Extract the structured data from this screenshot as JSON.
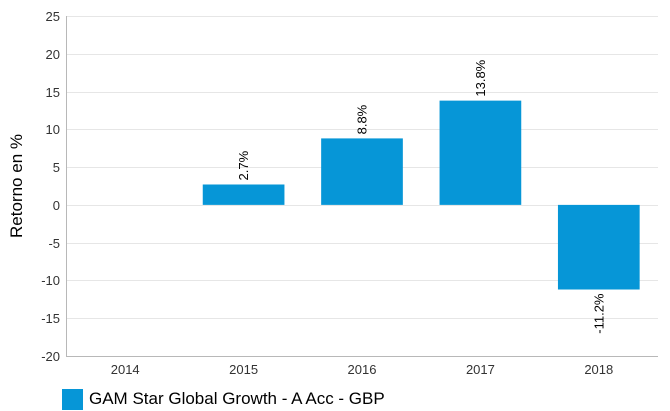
{
  "chart_data": {
    "type": "bar",
    "categories": [
      "2014",
      "2015",
      "2016",
      "2017",
      "2018"
    ],
    "series": [
      {
        "name": "GAM Star Global Growth - A Acc - GBP",
        "values": [
          null,
          2.7,
          8.8,
          13.8,
          -11.2
        ],
        "data_labels": [
          "",
          "2.7%",
          "8.8%",
          "13.8%",
          "-11.2%"
        ]
      }
    ],
    "ylabel": "Retorno en %",
    "xlabel": "",
    "title": "",
    "ylim": [
      -20,
      25
    ],
    "yticks": [
      25,
      20,
      15,
      10,
      5,
      0,
      -5,
      -10,
      -15,
      -20
    ],
    "grid": true,
    "legend_position": "bottom-left",
    "bar_color": "#0696d7"
  }
}
